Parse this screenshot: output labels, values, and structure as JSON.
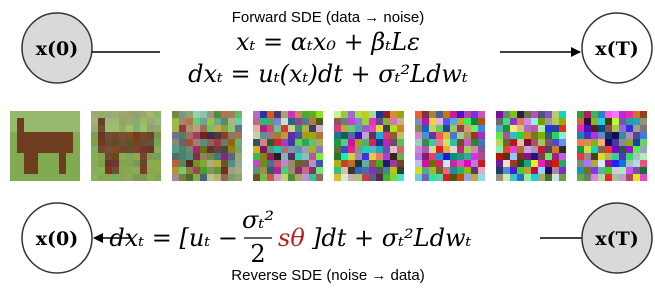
{
  "forward": {
    "title": "Forward SDE (data → noise)",
    "equation_1": "xₜ = αₜx₀ + βₜLε",
    "equation_2": "dxₜ = uₜ(xₜ)dt + σₜ²Ldwₜ"
  },
  "reverse": {
    "title": "Reverse SDE (noise → data)",
    "equation": {
      "left": "dxₜ = [uₜ −",
      "numerator": "σₜ²",
      "denominator": "2",
      "score": "sθ",
      "right": "]dt + σₜ²Ldwₜ"
    }
  },
  "nodes": {
    "top_left": "x(0)",
    "top_right": "x(T)",
    "bottom_left": "x(0)",
    "bottom_right": "x(T)"
  }
}
